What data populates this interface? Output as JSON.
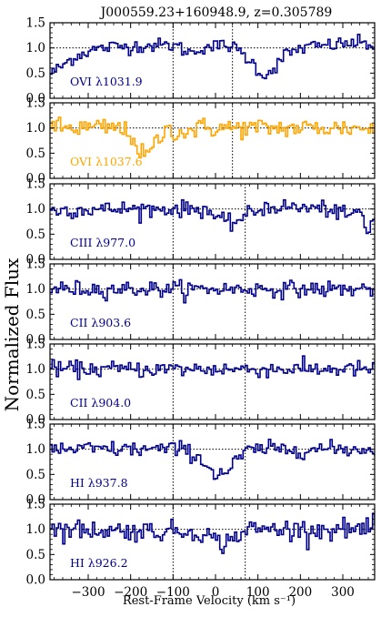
{
  "chart_data": {
    "type": "line",
    "title": "J000559.23+160948.9, z=0.305789",
    "xlabel": "Rest-Frame Velocity (km s⁻¹)",
    "ylabel": "Normalized Flux",
    "xlim": [
      -390,
      375
    ],
    "ylim": [
      0.0,
      1.5
    ],
    "xticks": [
      -300,
      -200,
      -100,
      0,
      100,
      200,
      300
    ],
    "xtick_labels": [
      "−300",
      "−200",
      "−100",
      "0",
      "100",
      "200",
      "300"
    ],
    "yticks": [
      0.0,
      0.5,
      1.0,
      1.5
    ],
    "ytick_labels": [
      "0.0",
      "0.5",
      "1.0",
      "1.5"
    ],
    "continuum": 1.0,
    "drawstyle": "steps",
    "grid": false,
    "panels": [
      {
        "label": "OVI λ1031.9",
        "color": "#00008b",
        "vlines": [
          -100,
          40
        ],
        "profile": [
          {
            "x": -390,
            "y": 0.5
          },
          {
            "x": -370,
            "y": 0.6
          },
          {
            "x": -340,
            "y": 0.8
          },
          {
            "x": -300,
            "y": 0.95
          },
          {
            "x": -250,
            "y": 1.02
          },
          {
            "x": -150,
            "y": 1.05
          },
          {
            "x": -100,
            "y": 1.05
          },
          {
            "x": -60,
            "y": 0.9
          },
          {
            "x": -30,
            "y": 1.02
          },
          {
            "x": 30,
            "y": 1.05
          },
          {
            "x": 60,
            "y": 0.9
          },
          {
            "x": 90,
            "y": 0.65
          },
          {
            "x": 110,
            "y": 0.45
          },
          {
            "x": 130,
            "y": 0.55
          },
          {
            "x": 160,
            "y": 0.85
          },
          {
            "x": 200,
            "y": 1.0
          },
          {
            "x": 260,
            "y": 1.05
          },
          {
            "x": 330,
            "y": 1.1
          },
          {
            "x": 375,
            "y": 1.05
          }
        ],
        "noise": 0.07
      },
      {
        "label": "OVI λ1037.6",
        "color": "#ffa500",
        "vlines": [
          -100,
          40
        ],
        "profile": [
          {
            "x": -390,
            "y": 1.0
          },
          {
            "x": -230,
            "y": 1.0
          },
          {
            "x": -200,
            "y": 0.85
          },
          {
            "x": -185,
            "y": 0.6
          },
          {
            "x": -170,
            "y": 0.4
          },
          {
            "x": -155,
            "y": 0.55
          },
          {
            "x": -130,
            "y": 0.85
          },
          {
            "x": -110,
            "y": 1.0
          },
          {
            "x": -90,
            "y": 0.9
          },
          {
            "x": -65,
            "y": 0.95
          },
          {
            "x": -40,
            "y": 1.0
          },
          {
            "x": 375,
            "y": 1.0
          }
        ],
        "noise": 0.1
      },
      {
        "label": "CIII λ977.0",
        "color": "#00008b",
        "vlines": [
          -100,
          70
        ],
        "profile": [
          {
            "x": -390,
            "y": 0.98
          },
          {
            "x": -200,
            "y": 1.0
          },
          {
            "x": -20,
            "y": 1.0
          },
          {
            "x": 0,
            "y": 0.8
          },
          {
            "x": 30,
            "y": 0.7
          },
          {
            "x": 60,
            "y": 0.82
          },
          {
            "x": 90,
            "y": 0.95
          },
          {
            "x": 120,
            "y": 1.05
          },
          {
            "x": 270,
            "y": 1.0
          },
          {
            "x": 300,
            "y": 0.85
          },
          {
            "x": 340,
            "y": 0.95
          },
          {
            "x": 355,
            "y": 0.5
          },
          {
            "x": 375,
            "y": 0.9
          }
        ],
        "noise": 0.08
      },
      {
        "label": "CII λ903.6",
        "color": "#00008b",
        "vlines": [
          -100,
          70
        ],
        "profile": [
          {
            "x": -390,
            "y": 1.0
          },
          {
            "x": 375,
            "y": 1.0
          }
        ],
        "noise": 0.08
      },
      {
        "label": "CII λ904.0",
        "color": "#00008b",
        "vlines": [
          -100,
          70
        ],
        "profile": [
          {
            "x": -390,
            "y": 1.0
          },
          {
            "x": 375,
            "y": 1.0
          }
        ],
        "noise": 0.08
      },
      {
        "label": "HI λ937.8",
        "color": "#00008b",
        "vlines": [
          -100,
          70
        ],
        "profile": [
          {
            "x": -390,
            "y": 1.0
          },
          {
            "x": -80,
            "y": 1.0
          },
          {
            "x": -50,
            "y": 0.9
          },
          {
            "x": -20,
            "y": 0.65
          },
          {
            "x": 0,
            "y": 0.5
          },
          {
            "x": 25,
            "y": 0.55
          },
          {
            "x": 45,
            "y": 0.75
          },
          {
            "x": 70,
            "y": 0.95
          },
          {
            "x": 100,
            "y": 1.0
          },
          {
            "x": 375,
            "y": 1.0
          }
        ],
        "noise": 0.08
      },
      {
        "label": "HI λ926.2",
        "color": "#00008b",
        "vlines": [
          -100,
          70
        ],
        "profile": [
          {
            "x": -390,
            "y": 1.0
          },
          {
            "x": -30,
            "y": 0.95
          },
          {
            "x": 0,
            "y": 0.75
          },
          {
            "x": 20,
            "y": 0.72
          },
          {
            "x": 50,
            "y": 0.9
          },
          {
            "x": 80,
            "y": 1.0
          },
          {
            "x": 375,
            "y": 1.0
          }
        ],
        "noise": 0.1
      }
    ]
  }
}
